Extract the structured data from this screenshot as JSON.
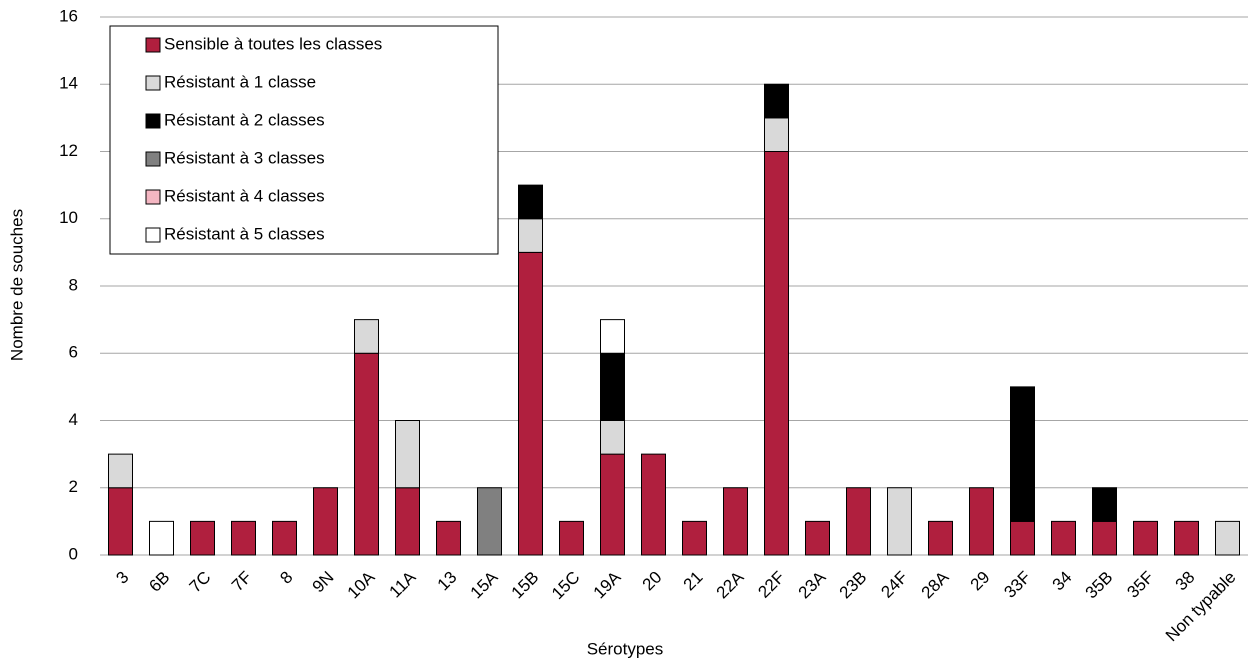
{
  "chart_data": {
    "type": "stacked-bar",
    "y_label": "Nombre de souches",
    "x_label": "Sérotypes",
    "categories": [
      "3",
      "6B",
      "7C",
      "7F",
      "8",
      "9N",
      "10A",
      "11A",
      "13",
      "15A",
      "15B",
      "15C",
      "19A",
      "20",
      "21",
      "22A",
      "22F",
      "23A",
      "23B",
      "24F",
      "28A",
      "29",
      "33F",
      "34",
      "35B",
      "35F",
      "38",
      "Non typable"
    ],
    "series": [
      {
        "name": "Sensible à toutes les classes",
        "color": "#b01f3e",
        "values": [
          2,
          0,
          1,
          1,
          1,
          2,
          6,
          2,
          1,
          0,
          9,
          1,
          3,
          3,
          1,
          2,
          12,
          1,
          2,
          0,
          1,
          2,
          1,
          1,
          1,
          1,
          1,
          0
        ]
      },
      {
        "name": "Résistant à 1 classe",
        "color": "#d9d9d9",
        "values": [
          1,
          0,
          0,
          0,
          0,
          0,
          1,
          2,
          0,
          0,
          1,
          0,
          1,
          0,
          0,
          0,
          1,
          0,
          0,
          2,
          0,
          0,
          0,
          0,
          0,
          0,
          0,
          1
        ]
      },
      {
        "name": "Résistant à 2 classes",
        "color": "#000000",
        "values": [
          0,
          0,
          0,
          0,
          0,
          0,
          0,
          0,
          0,
          0,
          1,
          0,
          2,
          0,
          0,
          0,
          1,
          0,
          0,
          0,
          0,
          0,
          4,
          0,
          1,
          0,
          0,
          0
        ]
      },
      {
        "name": "Résistant à 3 classes",
        "color": "#808080",
        "values": [
          0,
          0,
          0,
          0,
          0,
          0,
          0,
          0,
          0,
          2,
          0,
          0,
          0,
          0,
          0,
          0,
          0,
          0,
          0,
          0,
          0,
          0,
          0,
          0,
          0,
          0,
          0,
          0
        ]
      },
      {
        "name": "Résistant à 4 classes",
        "color": "#f4b6c2",
        "values": [
          0,
          0,
          0,
          0,
          0,
          0,
          0,
          0,
          0,
          0,
          0,
          0,
          0,
          0,
          0,
          0,
          0,
          0,
          0,
          0,
          0,
          0,
          0,
          0,
          0,
          0,
          0,
          0
        ]
      },
      {
        "name": "Résistant à 5 classes",
        "color": "#ffffff",
        "values": [
          0,
          1,
          0,
          0,
          0,
          0,
          0,
          0,
          0,
          0,
          0,
          0,
          1,
          0,
          0,
          0,
          0,
          0,
          0,
          0,
          0,
          0,
          0,
          0,
          0,
          0,
          0,
          0
        ]
      }
    ],
    "ylim": [
      0,
      16
    ],
    "yticks": [
      0,
      2,
      4,
      6,
      8,
      10,
      12,
      14,
      16
    ],
    "grid": true,
    "legend": "upper left"
  }
}
